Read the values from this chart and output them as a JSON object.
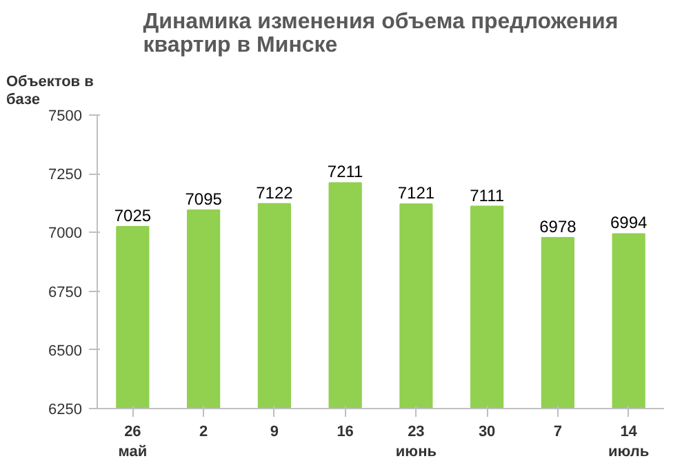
{
  "chart_data": {
    "type": "bar",
    "title": "Динамика изменения объема предложения квартир в Минске",
    "ylabel": "Объектов в базе",
    "categories": [
      "26\nмай",
      "2",
      "9",
      "16",
      "23\nиюнь",
      "30",
      "7",
      "14\nиюль"
    ],
    "values": [
      7025,
      7095,
      7122,
      7211,
      7121,
      7111,
      6978,
      6994
    ],
    "color": "#92d050",
    "ylim": [
      6250,
      7500
    ],
    "yticks": [
      6250,
      6500,
      6750,
      7000,
      7250,
      7500
    ],
    "data_labels": true,
    "grid": false
  }
}
